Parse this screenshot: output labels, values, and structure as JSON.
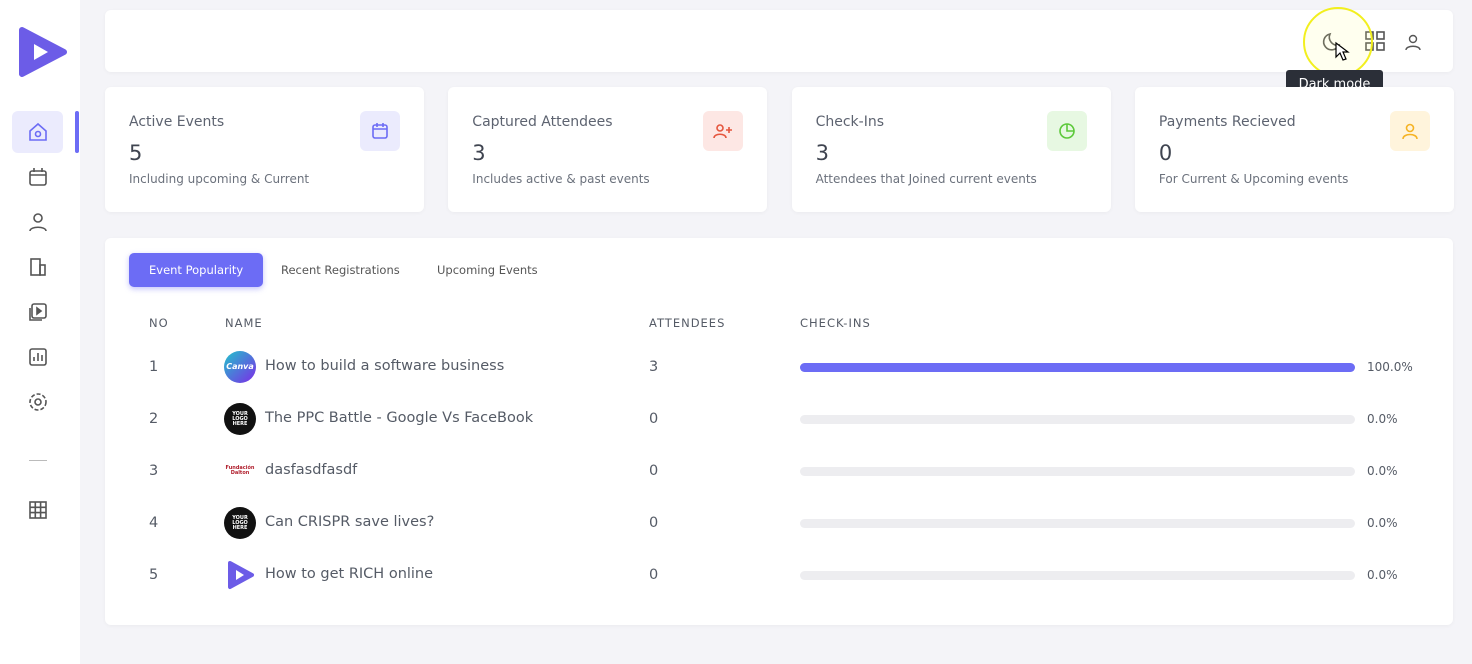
{
  "header": {
    "tooltip": "Dark mode"
  },
  "stats": [
    {
      "title": "Active Events",
      "value": 5,
      "subtitle": "Including upcoming & Current"
    },
    {
      "title": "Captured Attendees",
      "value": 3,
      "subtitle": "Includes active & past events"
    },
    {
      "title": "Check-Ins",
      "value": 3,
      "subtitle": "Attendees that Joined current events"
    },
    {
      "title": "Payments Recieved",
      "value": 0,
      "subtitle": "For Current & Upcoming events"
    }
  ],
  "tabs": [
    "Event Popularity",
    "Recent Registrations",
    "Upcoming Events"
  ],
  "table": {
    "columns": [
      "NO",
      "NAME",
      "ATTENDEES",
      "CHECK-INS"
    ],
    "rows": [
      {
        "no": 1,
        "logo": "Canva",
        "name": "How to build a software business",
        "attendees": 3,
        "checkins": {
          "value": 100,
          "label": "100.0%"
        }
      },
      {
        "no": 2,
        "logo": "YOUR LOGO HERE",
        "name": "The PPC Battle - Google Vs FaceBook",
        "attendees": 0,
        "checkins": {
          "value": 0,
          "label": "0.0%"
        }
      },
      {
        "no": 3,
        "logo": "Fundación Dalton",
        "name": "dasfasdfasdf",
        "attendees": 0,
        "checkins": {
          "value": 0,
          "label": "0.0%"
        }
      },
      {
        "no": 4,
        "logo": "YOUR LOGO HERE",
        "name": "Can CRISPR save lives?",
        "attendees": 0,
        "checkins": {
          "value": 0,
          "label": "0.0%"
        }
      },
      {
        "no": 5,
        "name": "How to get RICH online",
        "attendees": 0,
        "checkins": {
          "value": 0,
          "label": "0.0%"
        }
      }
    ]
  }
}
